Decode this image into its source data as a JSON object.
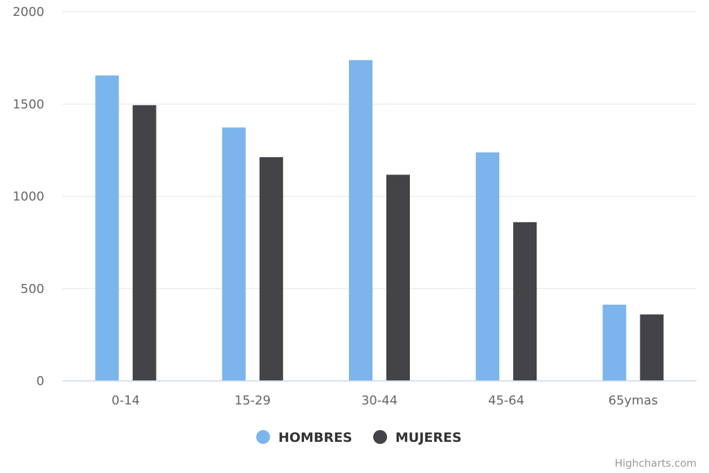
{
  "chart_data": {
    "type": "bar",
    "categories": [
      "0-14",
      "15-29",
      "30-44",
      "45-64",
      "65ymas"
    ],
    "series": [
      {
        "name": "HOMBRES",
        "color": "#7cb5ec",
        "values": [
          1655,
          1373,
          1738,
          1238,
          413
        ]
      },
      {
        "name": "MUJERES",
        "color": "#434348",
        "values": [
          1494,
          1212,
          1117,
          860,
          360
        ]
      }
    ],
    "ylim": [
      0,
      2000
    ],
    "yticks": [
      0,
      500,
      1000,
      1500,
      2000
    ],
    "grid": true,
    "legend_position": "bottom-center"
  },
  "credits": "Highcharts.com"
}
